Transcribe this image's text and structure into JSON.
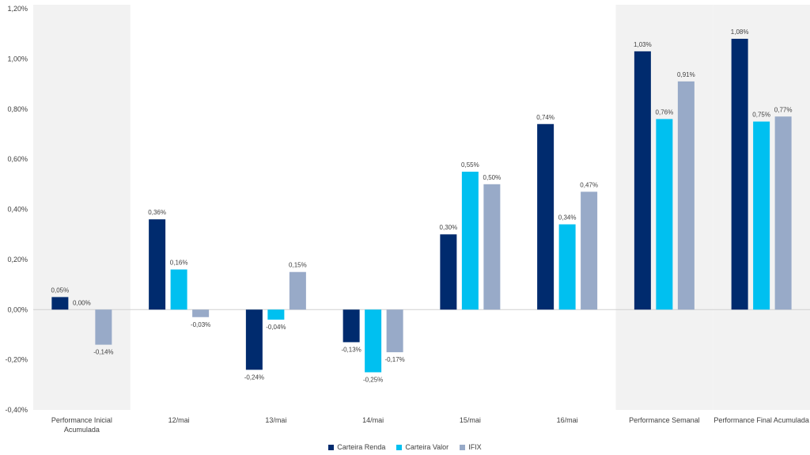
{
  "chart_data": {
    "type": "bar",
    "title": "",
    "xlabel": "",
    "ylabel": "",
    "ylim": [
      -0.4,
      1.2
    ],
    "y_ticks": [
      "1,20%",
      "1,00%",
      "0,80%",
      "0,60%",
      "0,40%",
      "0,20%",
      "0,00%",
      "-0,20%",
      "-0,40%"
    ],
    "y_tick_values": [
      1.2,
      1.0,
      0.8,
      0.6,
      0.4,
      0.2,
      0.0,
      -0.2,
      -0.4
    ],
    "grid": false,
    "legend_position": "bottom-center",
    "categories": [
      [
        "Performance Inicial",
        "Acumulada"
      ],
      [
        "12/mai"
      ],
      [
        "13/mai"
      ],
      [
        "14/mai"
      ],
      [
        "15/mai"
      ],
      [
        "16/mai"
      ],
      [
        "Performance Semanal"
      ],
      [
        "Performance Final Acumulada"
      ]
    ],
    "shaded_categories": [
      0,
      6,
      7
    ],
    "shade_color": "#f2f2f2",
    "series": [
      {
        "name": "Carteira Renda",
        "color": "#002b6e",
        "values": [
          0.05,
          0.36,
          -0.24,
          -0.13,
          0.3,
          0.74,
          1.03,
          1.08
        ],
        "labels": [
          "0,05%",
          "0,36%",
          "-0,24%",
          "-0,13%",
          "0,30%",
          "0,74%",
          "1,03%",
          "1,08%"
        ]
      },
      {
        "name": "Carteira Valor",
        "color": "#00c0f0",
        "values": [
          0.0,
          0.16,
          -0.04,
          -0.25,
          0.55,
          0.34,
          0.76,
          0.75
        ],
        "labels": [
          "0,00%",
          "0,16%",
          "-0,04%",
          "-0,25%",
          "0,55%",
          "0,34%",
          "0,76%",
          "0,75%"
        ]
      },
      {
        "name": "IFIX",
        "color": "#98aac8",
        "values": [
          -0.14,
          -0.03,
          0.15,
          -0.17,
          0.5,
          0.47,
          0.91,
          0.77
        ],
        "labels": [
          "-0,14%",
          "-0,03%",
          "0,15%",
          "-0,17%",
          "0,50%",
          "0,47%",
          "0,91%",
          "0,77%"
        ]
      }
    ]
  }
}
